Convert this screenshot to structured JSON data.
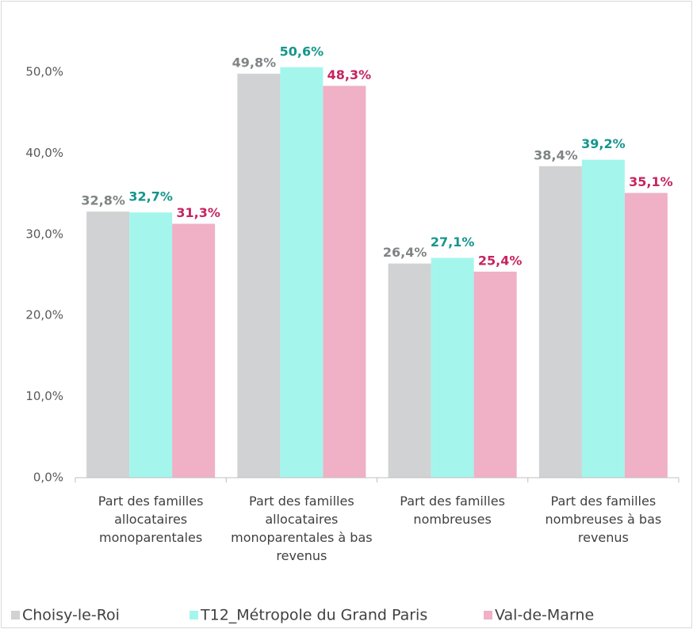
{
  "chart_data": {
    "type": "bar",
    "categories": [
      "Part des familles allocataires monoparentales",
      "Part des familles allocataires monoparentales à bas revenus",
      "Part des familles nombreuses",
      "Part des familles nombreuses à bas revenus"
    ],
    "series": [
      {
        "name": "Choisy-le-Roi",
        "color": "#d0d2d3",
        "label_color": "#7f8485",
        "values": [
          32.8,
          49.8,
          26.4,
          38.4
        ],
        "value_labels": [
          "32,8%",
          "49,8%",
          "26,4%",
          "38,4%"
        ]
      },
      {
        "name": "T12_Métropole du Grand Paris",
        "color": "#a4f6ec",
        "label_color": "#15968c",
        "values": [
          32.7,
          50.6,
          27.1,
          39.2
        ],
        "value_labels": [
          "32,7%",
          "50,6%",
          "27,1%",
          "39,2%"
        ]
      },
      {
        "name": "Val-de-Marne",
        "color": "#f0b0c6",
        "label_color": "#c5255f",
        "values": [
          31.3,
          48.3,
          25.4,
          35.1
        ],
        "value_labels": [
          "31,3%",
          "48,3%",
          "25,4%",
          "35,1%"
        ]
      }
    ],
    "ylim": [
      0,
      50
    ],
    "yticks": [
      {
        "value": 0,
        "label": "0,0%"
      },
      {
        "value": 10,
        "label": "10,0%"
      },
      {
        "value": 20,
        "label": "20,0%"
      },
      {
        "value": 30,
        "label": "30,0%"
      },
      {
        "value": 40,
        "label": "40,0%"
      },
      {
        "value": 50,
        "label": "50,0%"
      }
    ],
    "grid": false,
    "legend": "bottom"
  }
}
